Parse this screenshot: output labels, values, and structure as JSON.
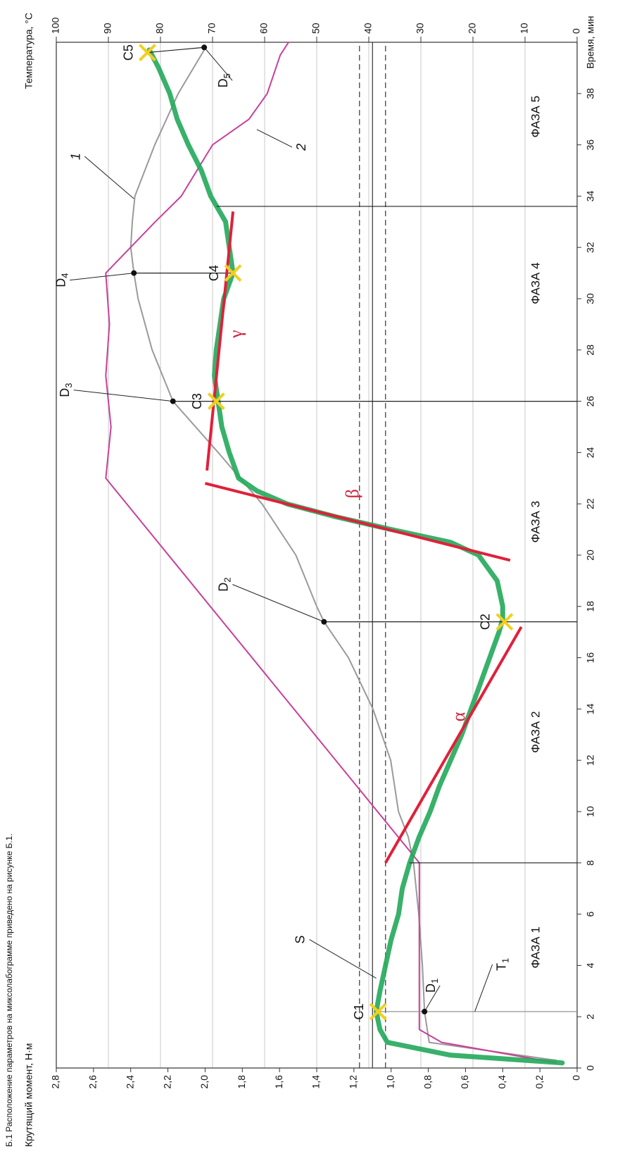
{
  "chart_data": {
    "type": "line",
    "caption": "Б.1  Расположение параметров на миксолабограмме приведено на рисунке Б.1.",
    "y_label": "Крутящий момент, Н·м",
    "y2_label": "Температура, °C",
    "x_label": "Время, мин",
    "xlim": [
      0,
      40
    ],
    "xticks": [
      0,
      2,
      4,
      6,
      8,
      10,
      12,
      14,
      16,
      18,
      20,
      22,
      24,
      26,
      28,
      30,
      32,
      34,
      36,
      38
    ],
    "ylim": [
      0,
      2.8
    ],
    "yticks": [
      0,
      {
        "value": 0.2,
        "label": "0,2"
      },
      {
        "value": 0.4,
        "label": "0,4"
      },
      {
        "value": 0.6,
        "label": "0,6"
      },
      {
        "value": 0.8,
        "label": "0,8"
      },
      {
        "value": 1.0,
        "label": "1,0"
      },
      {
        "value": 1.2,
        "label": "1,2"
      },
      {
        "value": 1.4,
        "label": "1,4"
      },
      {
        "value": 1.6,
        "label": "1,6"
      },
      {
        "value": 1.8,
        "label": "1,8"
      },
      {
        "value": 2.0,
        "label": "2,0"
      },
      {
        "value": 2.2,
        "label": "2,2"
      },
      {
        "value": 2.4,
        "label": "2,4"
      },
      {
        "value": 2.6,
        "label": "2,6"
      },
      {
        "value": 2.8,
        "label": "2,8"
      }
    ],
    "y2lim": [
      0,
      100
    ],
    "y2ticks": [
      0,
      10,
      20,
      30,
      40,
      50,
      60,
      70,
      80,
      90,
      100
    ],
    "grid": true,
    "series": [
      {
        "color": "#9a9a9a",
        "axis": "y2",
        "x": [
          0.3,
          1,
          2.2,
          4,
          6,
          8,
          9,
          10,
          12,
          14,
          16,
          17.4,
          18,
          20,
          22,
          24,
          26,
          28,
          30,
          31,
          32,
          33,
          34,
          36,
          38,
          39.7
        ],
        "values": [
          4,
          28.4,
          29.3,
          29.7,
          30.4,
          31.4,
          32.4,
          34.3,
          35.8,
          39.2,
          43.9,
          48.6,
          50,
          54,
          60.5,
          68.9,
          77.6,
          81.6,
          84.3,
          85.1,
          85.7,
          85.4,
          84.9,
          81.1,
          76.6,
          71.6
        ]
      },
      {
        "color": "#c8409a",
        "axis": "y2",
        "x": [
          0.2,
          1,
          1.5,
          8,
          23,
          25,
          27,
          29,
          31,
          33,
          34,
          36,
          37,
          38,
          39.5,
          40
        ],
        "values": [
          4,
          26,
          30.3,
          30.3,
          90.5,
          89.5,
          90.5,
          89.8,
          90.5,
          81,
          76,
          70,
          63,
          59.5,
          57,
          55.4
        ]
      },
      {
        "color": "#22a85a",
        "axis": "y",
        "x": [
          0.2,
          0.5,
          1,
          1.5,
          2.2,
          3,
          4,
          5,
          6,
          7,
          8,
          9,
          10,
          11,
          12,
          13,
          14,
          15,
          16,
          17,
          17.5,
          18,
          19,
          20,
          20.5,
          21,
          21.5,
          22,
          22.5,
          23,
          24,
          25,
          26,
          27,
          28,
          29,
          30,
          31,
          32,
          33,
          34,
          35,
          36,
          37,
          38,
          39,
          39.7
        ],
        "values": [
          0.08,
          0.68,
          1.02,
          1.06,
          1.08,
          1.06,
          1.03,
          1.0,
          0.96,
          0.94,
          0.9,
          0.85,
          0.79,
          0.74,
          0.68,
          0.62,
          0.57,
          0.52,
          0.47,
          0.42,
          0.4,
          0.4,
          0.43,
          0.53,
          0.68,
          1.0,
          1.3,
          1.56,
          1.72,
          1.82,
          1.87,
          1.91,
          1.93,
          1.95,
          1.94,
          1.92,
          1.9,
          1.85,
          1.87,
          1.89,
          1.97,
          2.02,
          2.09,
          2.15,
          2.19,
          2.25,
          2.3
        ]
      }
    ],
    "ref_lines": [
      {
        "value": 1.1,
        "style": "solid"
      },
      {
        "value": 1.17,
        "style": "dashed"
      },
      {
        "value": 1.03,
        "style": "dashed"
      }
    ],
    "tangents": [
      {
        "label": "α",
        "x": [
          8,
          17.2
        ],
        "y": [
          1.03,
          0.3
        ]
      },
      {
        "label": "β",
        "x": [
          19.8,
          22.8
        ],
        "y": [
          0.36,
          2.0
        ]
      },
      {
        "label": "γ",
        "x": [
          23.3,
          33.4
        ],
        "y": [
          1.99,
          1.85
        ]
      }
    ],
    "tangent_color": "#e0203a",
    "c_points": [
      {
        "label": "C1",
        "x": 2.2,
        "y": 1.07
      },
      {
        "label": "C2",
        "x": 17.4,
        "y": 0.39
      },
      {
        "label": "C3",
        "x": 26,
        "y": 1.94
      },
      {
        "label": "C4",
        "x": 31,
        "y": 1.85
      },
      {
        "label": "C5",
        "x": 39.6,
        "y": 2.31
      }
    ],
    "c_color": "#f0d020",
    "d_points": [
      {
        "label": "D",
        "sub": "1",
        "x": 2.2,
        "y": 29.3
      },
      {
        "label": "D",
        "sub": "2",
        "x": 17.4,
        "y": 48.6
      },
      {
        "label": "D",
        "sub": "3",
        "x": 26,
        "y": 77.6
      },
      {
        "label": "D",
        "sub": "4",
        "x": 31,
        "y": 85.1
      },
      {
        "label": "D",
        "sub": "5",
        "x": 39.8,
        "y": 71.6
      }
    ],
    "phase_lines": [
      8,
      33.6
    ],
    "phases": [
      {
        "label": "ФАЗА 1",
        "x": 4.7
      },
      {
        "label": "ФАЗА 2",
        "x": 13.1
      },
      {
        "label": "ФАЗА 3",
        "x": 21.3
      },
      {
        "label": "ФАЗА 4",
        "x": 30.6
      },
      {
        "label": "ФАЗА 5",
        "x": 37.1
      }
    ],
    "annotations": [
      {
        "label": "S",
        "x": 3.5,
        "y": 1.08,
        "axis": "y"
      },
      {
        "label": "T",
        "sub": "1",
        "x": 2.2,
        "y": 0.55,
        "axis": "y"
      },
      {
        "label": "1",
        "x": 33.9,
        "y": 85.1,
        "axis": "y2"
      },
      {
        "label": "2",
        "x": 36.6,
        "y": 61.5,
        "axis": "y2"
      }
    ]
  }
}
